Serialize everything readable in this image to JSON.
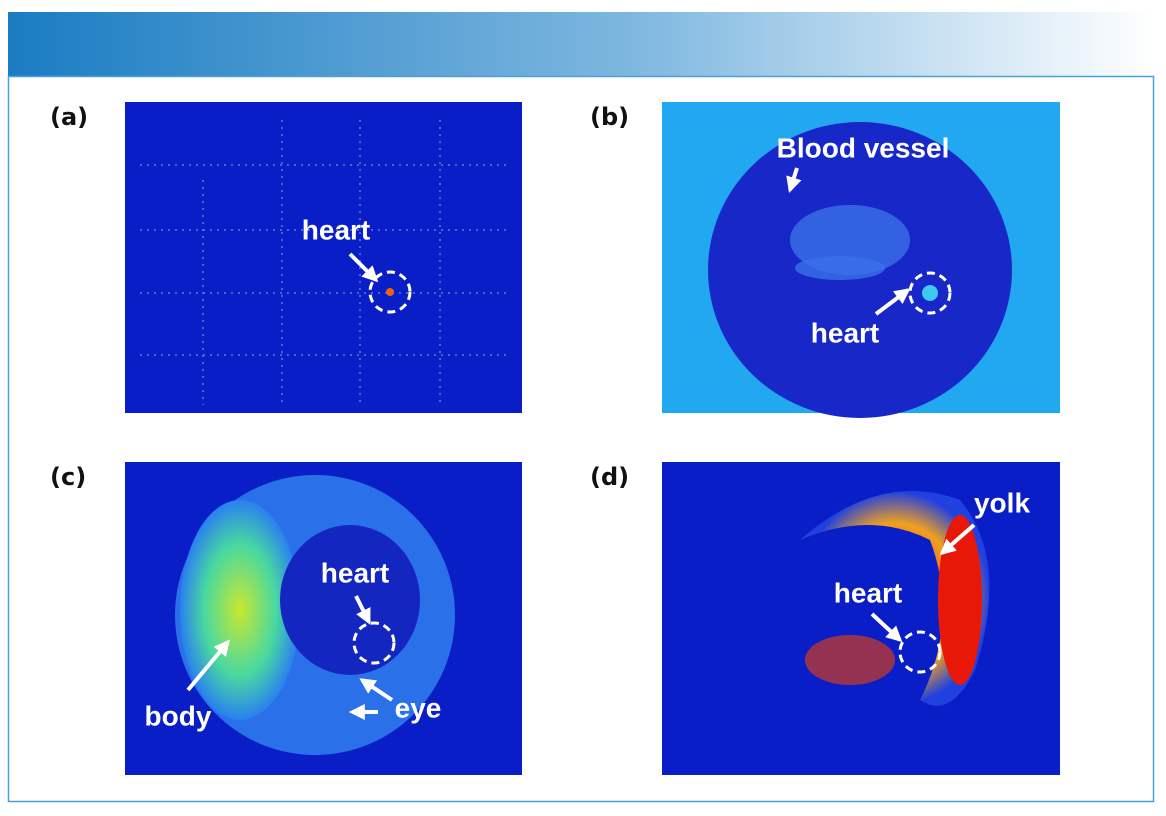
{
  "panels": [
    {
      "label": "(a)",
      "annotations": [
        "heart"
      ]
    },
    {
      "label": "(b)",
      "annotations": [
        "Blood vessel",
        "heart"
      ]
    },
    {
      "label": "(c)",
      "annotations": [
        "heart",
        "body",
        "eye"
      ]
    },
    {
      "label": "(d)",
      "annotations": [
        "yolk",
        "heart"
      ]
    }
  ]
}
